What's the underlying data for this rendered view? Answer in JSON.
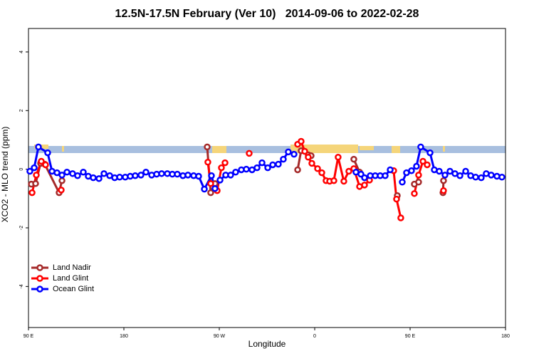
{
  "chart_data": {
    "type": "line",
    "title": "12.5N-17.5N February (Ver 10)   2014-09-06 to 2022-02-28",
    "xlabel": "Longitude",
    "ylabel": "XCO2 - MLO trend (ppm)",
    "xlim": [
      90,
      540
    ],
    "ylim": [
      -5.4,
      4.8
    ],
    "xticks": [
      {
        "value": 90,
        "label": "90 E"
      },
      {
        "value": 180,
        "label": "180"
      },
      {
        "value": 270,
        "label": "90 W"
      },
      {
        "value": 360,
        "label": "0"
      },
      {
        "value": 450,
        "label": "90 E"
      },
      {
        "value": 540,
        "label": "180"
      }
    ],
    "yticks": [
      -4,
      -2,
      0,
      2,
      4
    ],
    "grid": false,
    "legend": "bottomleft",
    "series": [
      {
        "name": "Land Nadir",
        "color": "#a52a2a",
        "x": [
          92.7,
          96.7,
          101.4,
          105.4,
          118.9,
          121.6,
          null,
          258.6,
          261.9,
          266,
          null,
          343.9,
          347.2,
          353.9,
          356.6,
          null,
          396.9,
          402.3,
          null,
          437.9,
          null,
          454,
          458,
          null,
          481,
          481.5
        ],
        "values": [
          -0.51,
          -0.49,
          0.2,
          0.17,
          -0.8,
          -0.39,
          null,
          0.76,
          -0.8,
          -0.49,
          null,
          -0.02,
          0.63,
          0.49,
          0.46,
          null,
          0.34,
          -0.1,
          null,
          -0.9,
          null,
          -0.51,
          -0.44,
          null,
          -0.8,
          -0.39
        ]
      },
      {
        "name": "Land Glint",
        "color": "#ff0000",
        "x": [
          93.4,
          97.4,
          102.1,
          106.1,
          null,
          120.9,
          null,
          259.2,
          261.9,
          268,
          272,
          275.4,
          null,
          298.2,
          null,
          343.9,
          347.2,
          350.6,
          353.9,
          357.3,
          362.7,
          366.7,
          370.7,
          374.1,
          378.1,
          382.1,
          387.5,
          392.2,
          396.9,
          402.3,
          407,
          411.7,
          null,
          434.5,
          437.2,
          441.2,
          null,
          454,
          458,
          462.1,
          466.1,
          null,
          481.5
        ],
        "values": [
          -0.8,
          -0.2,
          0.27,
          0.15,
          null,
          -0.71,
          null,
          0.24,
          -0.49,
          -0.73,
          0.05,
          0.22,
          null,
          0.54,
          null,
          0.85,
          0.95,
          0.61,
          0.41,
          0.2,
          0.02,
          -0.12,
          -0.39,
          -0.41,
          -0.39,
          0.41,
          -0.41,
          -0.07,
          0.02,
          -0.59,
          -0.54,
          -0.37,
          null,
          -0.05,
          -1.02,
          -1.66,
          null,
          -0.83,
          -0.2,
          0.27,
          0.15,
          null,
          -0.73
        ]
      },
      {
        "name": "Ocean Glint",
        "color": "#0000ff",
        "x": [
          91.3,
          95.4,
          99.4,
          108.1,
          112.2,
          116.9,
          121.6,
          126.3,
          131.6,
          136.3,
          141.7,
          146.4,
          151.1,
          156.5,
          161.2,
          166.6,
          171.3,
          176,
          181.3,
          186,
          190.7,
          196.1,
          200.8,
          206.2,
          210.9,
          215.6,
          221,
          225.7,
          230.4,
          235.7,
          240.4,
          245.8,
          250.5,
          255.9,
          262.6,
          265.9,
          270.7,
          276,
          280.7,
          285.4,
          290.8,
          295.5,
          300.9,
          305.6,
          310.3,
          315.7,
          320.4,
          325.7,
          330.4,
          335.1,
          340.5,
          null,
          398.9,
          403.6,
          407,
          412.4,
          417.1,
          421.8,
          426.5,
          431.2,
          null,
          442.6,
          446.6,
          451.3,
          456,
          460,
          468.8,
          472.8,
          477.5,
          482.9,
          487.6,
          492.3,
          497,
          502.4,
          507.1,
          511.8,
          517.1,
          521.8,
          526.5,
          531.9,
          536.6
        ],
        "values": [
          -0.07,
          0.05,
          0.76,
          0.56,
          -0.07,
          -0.12,
          -0.2,
          -0.1,
          -0.15,
          -0.22,
          -0.1,
          -0.24,
          -0.29,
          -0.32,
          -0.15,
          -0.22,
          -0.29,
          -0.27,
          -0.27,
          -0.24,
          -0.22,
          -0.2,
          -0.1,
          -0.2,
          -0.17,
          -0.15,
          -0.15,
          -0.17,
          -0.17,
          -0.22,
          -0.2,
          -0.22,
          -0.24,
          -0.68,
          -0.22,
          -0.66,
          -0.37,
          -0.2,
          -0.2,
          -0.1,
          -0.02,
          0,
          -0.02,
          0.05,
          0.22,
          0.05,
          0.15,
          0.17,
          0.34,
          0.59,
          0.51,
          null,
          -0.1,
          -0.17,
          -0.29,
          -0.22,
          -0.22,
          -0.22,
          -0.22,
          -0.02,
          null,
          -0.44,
          -0.12,
          -0.05,
          0.1,
          0.76,
          0.56,
          -0.02,
          -0.07,
          -0.2,
          -0.07,
          -0.15,
          -0.22,
          -0.07,
          -0.22,
          -0.27,
          -0.29,
          -0.15,
          -0.2,
          -0.24,
          -0.27
        ]
      }
    ]
  }
}
